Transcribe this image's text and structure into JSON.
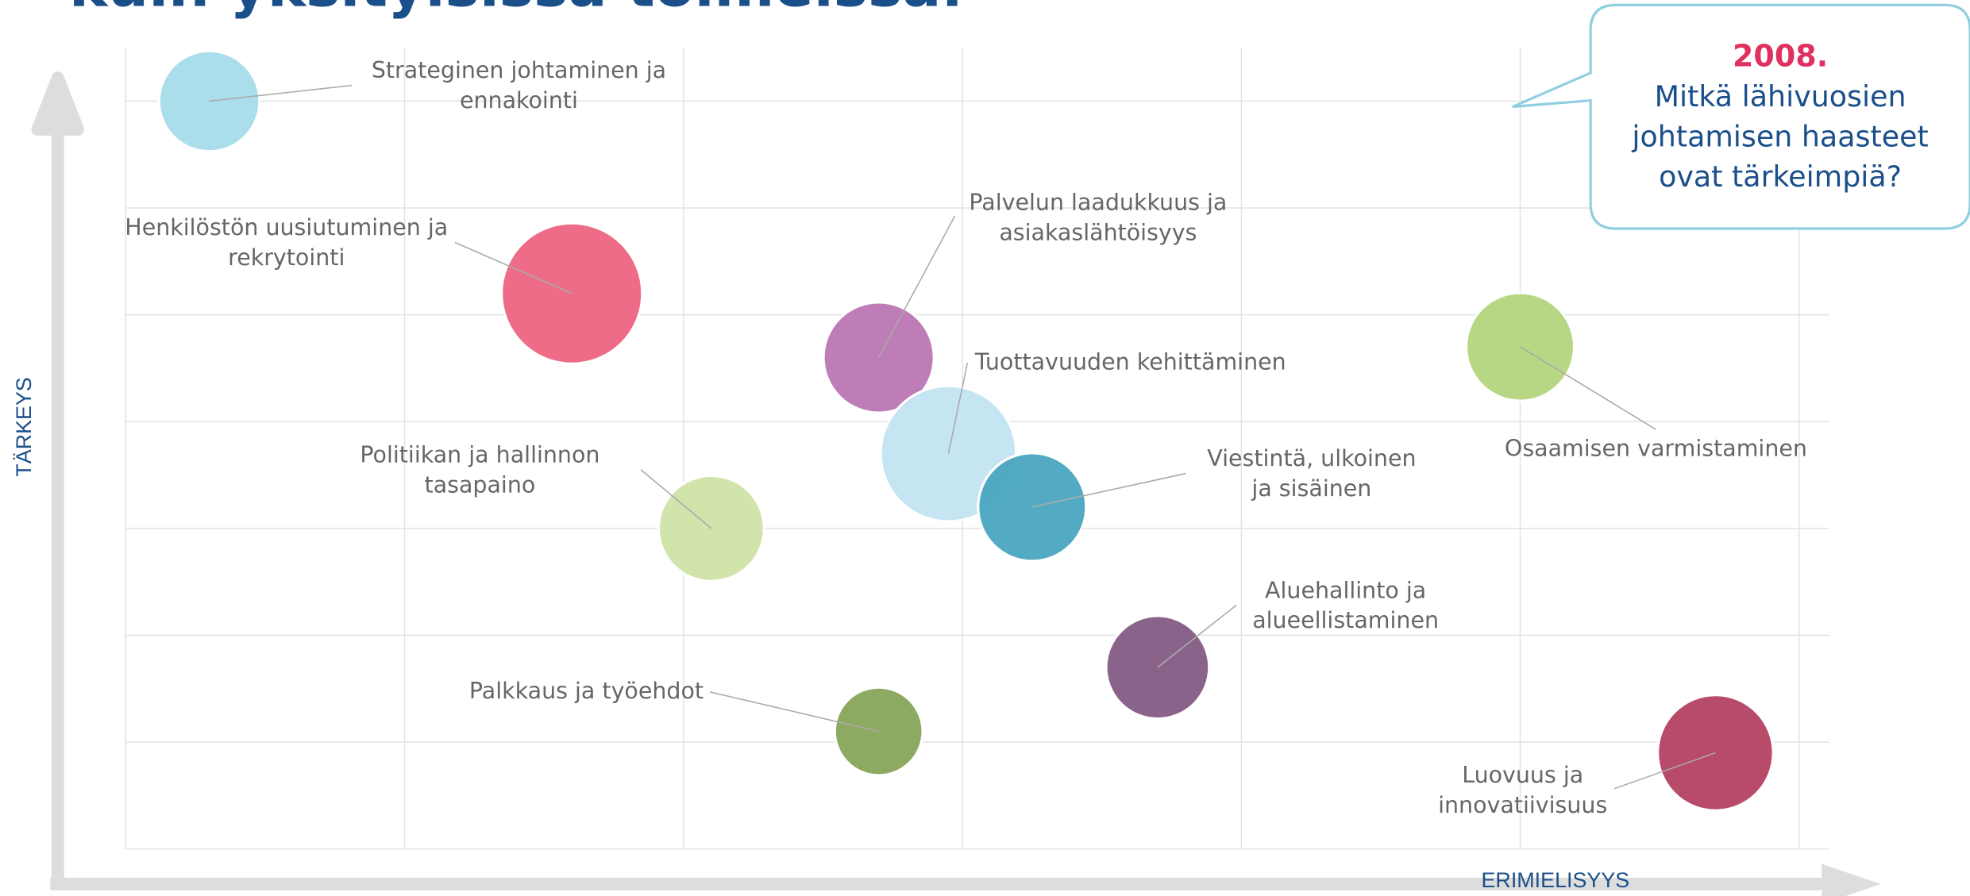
{
  "chart_data": {
    "type": "scatter",
    "title": "kuin yksityisissä toimeissa.",
    "callout": {
      "year": "2008.",
      "lines": [
        "Mitkä lähivuosien",
        "johtamisen haasteet",
        "ovat tärkeimpiä?"
      ]
    },
    "y_label": "TÄRKEYS",
    "x_label": "ERIMIELISYYS",
    "labels": [
      [
        "Strateginen johtaminen ja",
        "ennakointi"
      ],
      [
        "Henkilöstön uusiutuminen ja",
        "rekrytointi"
      ],
      [
        "Palvelun laadukkuus ja",
        "asiakaslähtöisyys"
      ],
      [
        "Tuottavuuden kehittäminen"
      ],
      [
        "Viestintä, ulkoinen",
        "ja sisäinen"
      ],
      [
        "Politiikan ja hallinnon",
        "tasapaino"
      ],
      [
        "Aluehallinto ja",
        "alueellistaminen"
      ],
      [
        "Palkkaus ja työehdot"
      ],
      [
        "Osaamisen varmistaminen"
      ],
      [
        "Luovuus ja",
        "innovatiivisuus"
      ]
    ],
    "x": [
      0.3,
      1.6,
      2.7,
      2.95,
      3.25,
      2.1,
      3.7,
      2.7,
      5.0,
      5.7
    ],
    "y": [
      7.0,
      5.2,
      4.6,
      3.7,
      3.2,
      3.0,
      1.7,
      1.1,
      4.7,
      0.9
    ],
    "sizes": [
      40,
      56,
      44,
      54,
      43,
      42,
      41,
      35,
      43,
      46
    ],
    "colors": [
      "#a6dcea",
      "#ee6483",
      "#bb76b3",
      "#c2e4f2",
      "#4aa6c0",
      "#cfe3a6",
      "#845b84",
      "#87a55a",
      "#b3d57d",
      "#b44162"
    ],
    "xlim": [
      0,
      6
    ],
    "ylim": [
      0,
      7.5
    ],
    "xticks": [
      0,
      1,
      2,
      3,
      4,
      5,
      6
    ],
    "yticks": [
      0,
      1,
      2,
      3,
      4,
      5,
      6,
      7
    ],
    "grid": true
  }
}
